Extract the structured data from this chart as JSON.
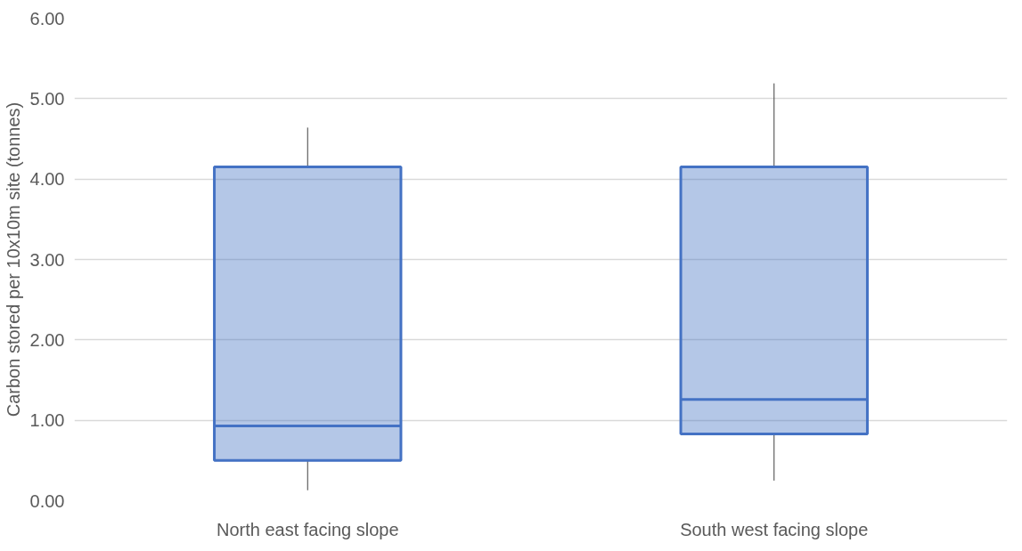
{
  "chart_data": {
    "type": "box",
    "ylabel": "Carbon stored per 10x10m site (tonnes)",
    "categories": [
      "North east facing slope",
      "South west facing slope"
    ],
    "boxes": [
      {
        "low": 0.13,
        "q1": 0.5,
        "median": 0.93,
        "q3": 4.15,
        "high": 4.64
      },
      {
        "low": 0.25,
        "q1": 0.83,
        "median": 1.26,
        "q3": 4.15,
        "high": 5.19
      }
    ],
    "color": "#4472c4",
    "ylim": [
      0,
      6
    ],
    "yticks": [
      {
        "value": 0,
        "label": "0.00"
      },
      {
        "value": 1,
        "label": "1.00"
      },
      {
        "value": 2,
        "label": "2.00"
      },
      {
        "value": 3,
        "label": "3.00"
      },
      {
        "value": 4,
        "label": "4.00"
      },
      {
        "value": 5,
        "label": "5.00"
      },
      {
        "value": 6,
        "label": "6.00"
      }
    ],
    "grid": "y"
  }
}
